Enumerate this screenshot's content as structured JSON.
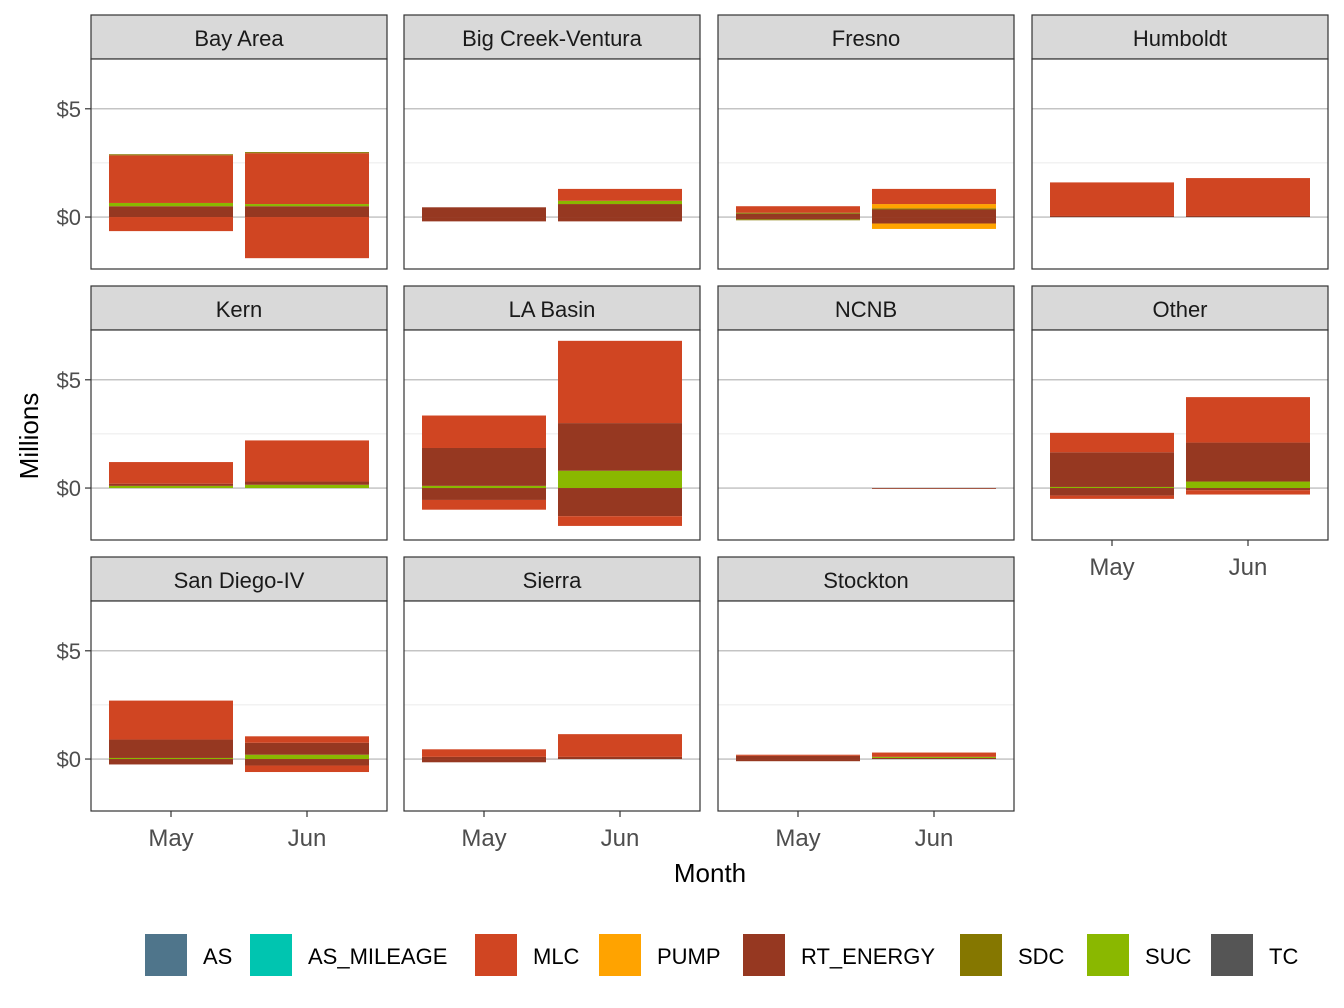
{
  "chart_data": {
    "type": "bar",
    "stacked": true,
    "faceted": true,
    "facet_columns": 4,
    "xlabel": "Month",
    "ylabel": "Millions",
    "categories": [
      "May",
      "Jun"
    ],
    "ylim": [
      -2.4,
      7.3
    ],
    "yticks": [
      0,
      5
    ],
    "ytick_labels": [
      "$0",
      "$5"
    ],
    "grid": true,
    "legend": {
      "position": "bottom",
      "entries": [
        {
          "name": "AS",
          "color": "#4F758B"
        },
        {
          "name": "AS_MILEAGE",
          "color": "#00C5B0"
        },
        {
          "name": "MLC",
          "color": "#D04522"
        },
        {
          "name": "PUMP",
          "color": "#FFA300"
        },
        {
          "name": "RT_ENERGY",
          "color": "#963821"
        },
        {
          "name": "SDC",
          "color": "#857700"
        },
        {
          "name": "SUC",
          "color": "#8AB800"
        },
        {
          "name": "TC",
          "color": "#555555"
        }
      ]
    },
    "facets": [
      {
        "name": "Bay Area",
        "series": [
          {
            "name": "RT_ENERGY",
            "values": [
              [
                0.5,
                3.2
              ],
              [
                0.5,
                2.95
              ]
            ]
          },
          {
            "name": "SUC",
            "values": [
              [
                0.15,
                0.5
              ],
              [
                0.1,
                0.5
              ]
            ]
          },
          {
            "name": "MLC",
            "values": [
              [
                2.2,
                -0.65
              ],
              [
                2.35,
                -1.9
              ]
            ]
          },
          {
            "name": "SDC",
            "values": [
              [
                0.05,
                0
              ],
              [
                0.05,
                0
              ]
            ]
          },
          {
            "name": "RT_ENERGY_neg",
            "values": [
              [
                -0.25,
                0
              ],
              [
                -0.2,
                0
              ]
            ]
          }
        ]
      },
      {
        "name": "Big Creek-Ventura",
        "series": [
          {
            "name": "RT_ENERGY",
            "values": [
              [
                0.45,
                -0.2
              ],
              [
                0.6,
                -0.2
              ]
            ]
          },
          {
            "name": "SUC",
            "values": [
              [
                0,
                0
              ],
              [
                0.15,
                0
              ]
            ]
          },
          {
            "name": "MLC",
            "values": [
              [
                0,
                0
              ],
              [
                0.55,
                0
              ]
            ]
          }
        ]
      },
      {
        "name": "Fresno",
        "series": [
          {
            "name": "RT_ENERGY",
            "values": [
              [
                0.15,
                -0.1
              ],
              [
                0.35,
                -0.3
              ]
            ]
          },
          {
            "name": "SDC",
            "values": [
              [
                0.05,
                -0.05
              ],
              [
                0.05,
                0
              ]
            ]
          },
          {
            "name": "PUMP",
            "values": [
              [
                0,
                0
              ],
              [
                0.2,
                -0.25
              ]
            ]
          },
          {
            "name": "MLC",
            "values": [
              [
                0.3,
                0
              ],
              [
                0.7,
                0
              ]
            ]
          }
        ]
      },
      {
        "name": "Humboldt",
        "series": [
          {
            "name": "RT_ENERGY",
            "values": [
              [
                0.05,
                0
              ],
              [
                0.05,
                0
              ]
            ]
          },
          {
            "name": "MLC",
            "values": [
              [
                1.55,
                0
              ],
              [
                1.75,
                0
              ]
            ]
          }
        ]
      },
      {
        "name": "Kern",
        "series": [
          {
            "name": "SUC",
            "values": [
              [
                0.1,
                0
              ],
              [
                0.15,
                0
              ]
            ]
          },
          {
            "name": "RT_ENERGY",
            "values": [
              [
                0.1,
                0
              ],
              [
                0.15,
                0
              ]
            ]
          },
          {
            "name": "MLC",
            "values": [
              [
                1.0,
                0
              ],
              [
                1.9,
                0
              ]
            ]
          }
        ]
      },
      {
        "name": "LA Basin",
        "series": [
          {
            "name": "SUC",
            "values": [
              [
                0.1,
                0
              ],
              [
                0.8,
                0
              ]
            ]
          },
          {
            "name": "RT_ENERGY",
            "values": [
              [
                1.75,
                -0.55
              ],
              [
                2.2,
                -1.3
              ]
            ]
          },
          {
            "name": "MLC",
            "values": [
              [
                1.5,
                -0.45
              ],
              [
                3.8,
                -0.45
              ]
            ]
          }
        ]
      },
      {
        "name": "NCNB",
        "series": [
          {
            "name": "RT_ENERGY",
            "values": [
              [
                0,
                0
              ],
              [
                0,
                -0.03
              ]
            ]
          }
        ]
      },
      {
        "name": "Other",
        "series": [
          {
            "name": "SUC",
            "values": [
              [
                0.05,
                0
              ],
              [
                0.3,
                0
              ]
            ]
          },
          {
            "name": "RT_ENERGY",
            "values": [
              [
                1.6,
                -0.35
              ],
              [
                1.8,
                -0.1
              ]
            ]
          },
          {
            "name": "MLC",
            "values": [
              [
                0.9,
                -0.15
              ],
              [
                2.1,
                -0.2
              ]
            ]
          }
        ]
      },
      {
        "name": "San Diego-IV",
        "series": [
          {
            "name": "SUC",
            "values": [
              [
                0.05,
                0
              ],
              [
                0.2,
                0
              ]
            ]
          },
          {
            "name": "RT_ENERGY",
            "values": [
              [
                0.85,
                -0.25
              ],
              [
                0.55,
                -0.3
              ]
            ]
          },
          {
            "name": "MLC",
            "values": [
              [
                1.8,
                0
              ],
              [
                0.3,
                -0.3
              ]
            ]
          }
        ]
      },
      {
        "name": "Sierra",
        "series": [
          {
            "name": "RT_ENERGY",
            "values": [
              [
                0.1,
                -0.15
              ],
              [
                0.1,
                0
              ]
            ]
          },
          {
            "name": "MLC",
            "values": [
              [
                0.35,
                0
              ],
              [
                1.05,
                0
              ]
            ]
          }
        ]
      },
      {
        "name": "Stockton",
        "series": [
          {
            "name": "RT_ENERGY",
            "values": [
              [
                0.15,
                -0.1
              ],
              [
                0.05,
                0
              ]
            ]
          },
          {
            "name": "SUC",
            "values": [
              [
                0,
                0
              ],
              [
                0.05,
                0
              ]
            ]
          },
          {
            "name": "MLC",
            "values": [
              [
                0.05,
                0
              ],
              [
                0.2,
                0
              ]
            ]
          }
        ]
      }
    ]
  }
}
